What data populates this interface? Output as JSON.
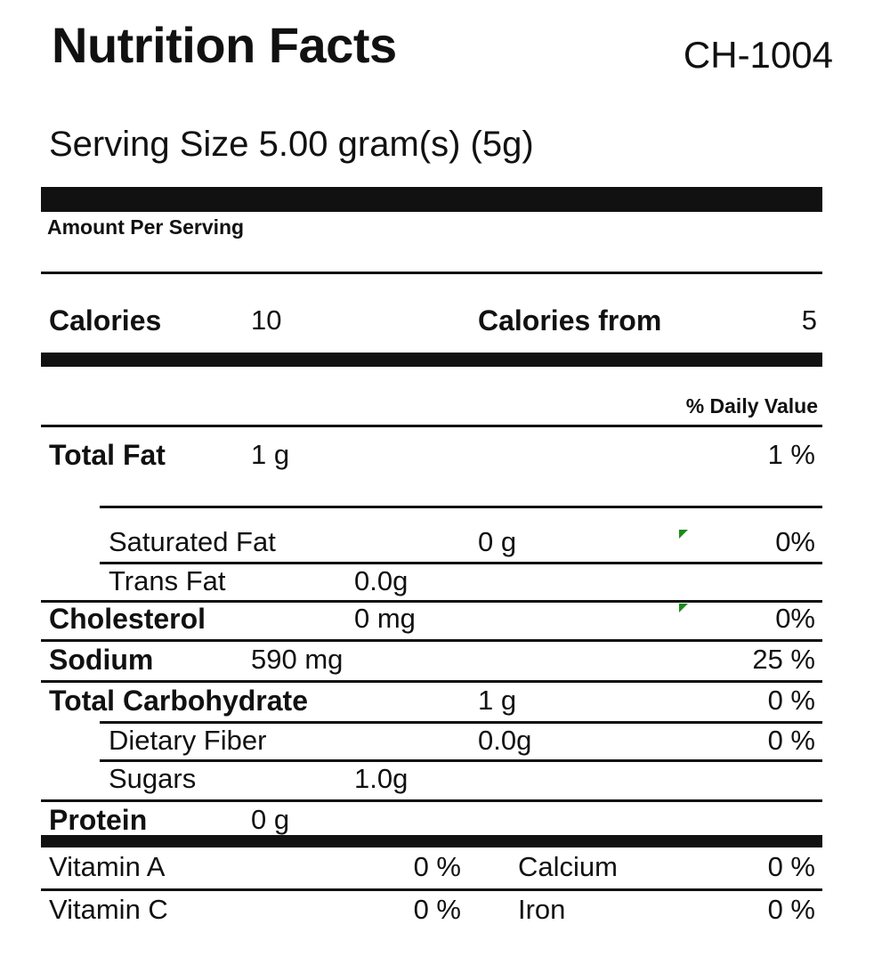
{
  "label": {
    "title": "Nutrition Facts",
    "code": "CH-1004",
    "serving_size": "Serving Size 5.00 gram(s) (5g)",
    "amount_per_serving": "Amount Per Serving",
    "calories": {
      "label": "Calories",
      "value": "10"
    },
    "calories_from": {
      "label": "Calories from",
      "value": "5"
    },
    "daily_value_header": "% Daily Value",
    "marker_color": "#1a8c1a",
    "rows": {
      "total_fat": {
        "name": "Total Fat",
        "amount": "1 g",
        "dv": "1 %"
      },
      "saturated_fat": {
        "name": "Saturated Fat",
        "amount": "0 g",
        "dv": "0%"
      },
      "trans_fat": {
        "name": "Trans Fat",
        "amount": "0.0g"
      },
      "cholesterol": {
        "name": "Cholesterol",
        "amount": "0 mg",
        "dv": "0%"
      },
      "sodium": {
        "name": "Sodium",
        "amount": "590 mg",
        "dv": "25 %"
      },
      "total_carbohydrate": {
        "name": "Total Carbohydrate",
        "amount": "1 g",
        "dv": "0 %"
      },
      "dietary_fiber": {
        "name": "Dietary Fiber",
        "amount": "0.0g",
        "dv": "0 %"
      },
      "sugars": {
        "name": "Sugars",
        "amount": "1.0g"
      },
      "protein": {
        "name": "Protein",
        "amount": "0 g"
      }
    },
    "vitamins": {
      "vitamin_a": {
        "name": "Vitamin A",
        "dv": "0 %"
      },
      "calcium": {
        "name": "Calcium",
        "dv": "0 %"
      },
      "vitamin_c": {
        "name": "Vitamin C",
        "dv": "0 %"
      },
      "iron": {
        "name": "Iron",
        "dv": "0 %"
      }
    }
  }
}
